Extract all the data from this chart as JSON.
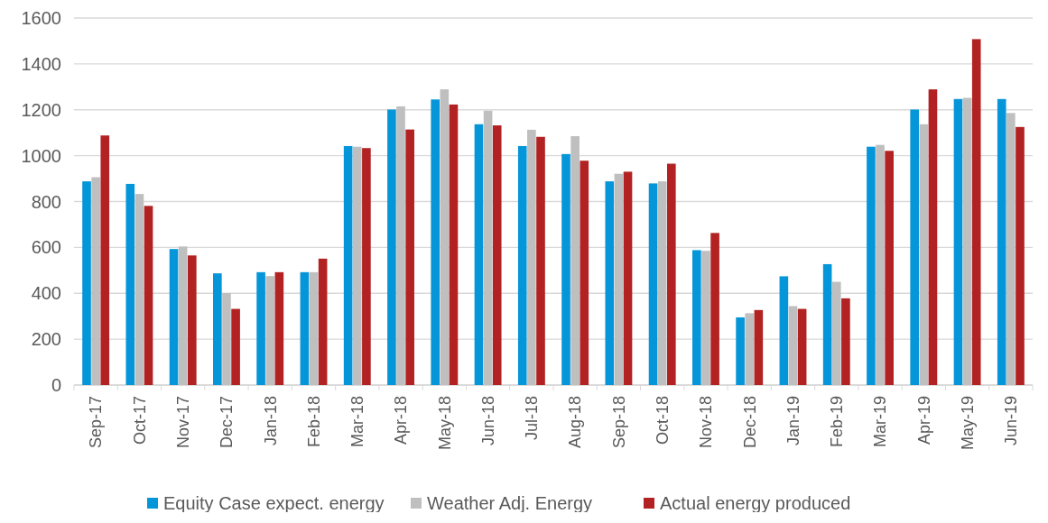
{
  "chart_data": {
    "type": "bar",
    "categories": [
      "Sep-17",
      "Oct-17",
      "Nov-17",
      "Dec-17",
      "Jan-18",
      "Feb-18",
      "Mar-18",
      "Apr-18",
      "May-18",
      "Jun-18",
      "Jul-18",
      "Aug-18",
      "Sep-18",
      "Oct-18",
      "Nov-18",
      "Dec-18",
      "Jan-19",
      "Feb-19",
      "Mar-19",
      "Apr-19",
      "May-19",
      "Jun-19"
    ],
    "series": [
      {
        "name": "Equity Case expect. energy",
        "color": "#0596d9",
        "values": [
          888,
          877,
          593,
          487,
          492,
          492,
          1042,
          1201,
          1245,
          1137,
          1042,
          1007,
          888,
          879,
          588,
          295,
          474,
          527,
          1039,
          1201,
          1247,
          1247
        ]
      },
      {
        "name": "Weather Adj. Energy",
        "color": "#bfbfbf",
        "values": [
          906,
          833,
          604,
          401,
          475,
          492,
          1039,
          1215,
          1289,
          1196,
          1113,
          1085,
          921,
          888,
          585,
          313,
          344,
          450,
          1047,
          1137,
          1252,
          1186
        ]
      },
      {
        "name": "Actual energy produced",
        "color": "#b22222",
        "values": [
          1088,
          781,
          565,
          332,
          492,
          551,
          1033,
          1114,
          1223,
          1132,
          1082,
          978,
          930,
          965,
          663,
          327,
          332,
          378,
          1021,
          1289,
          1508,
          1125
        ]
      }
    ],
    "ylim": [
      0,
      1600
    ],
    "yticks": [
      0,
      200,
      400,
      600,
      800,
      1000,
      1200,
      1400,
      1600
    ],
    "grid": "y",
    "legend": "bottom"
  }
}
